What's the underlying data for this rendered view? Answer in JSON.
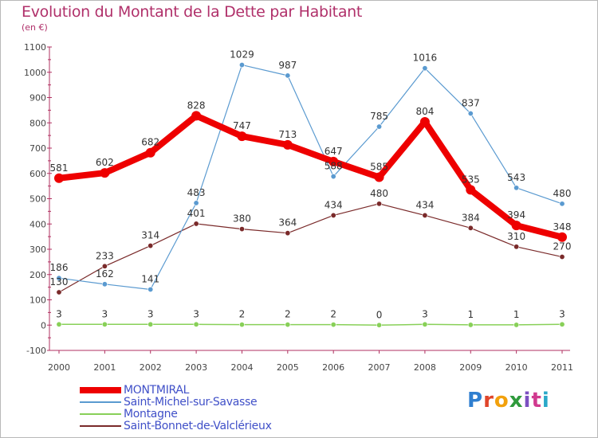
{
  "header": {
    "title": "Evolution du Montant de la Dette par Habitant",
    "subtitle": "(en €)"
  },
  "logo": {
    "text": "Proxiti",
    "colors": [
      "#2f7fd0",
      "#e0452a",
      "#f2a10c",
      "#2f9a3c",
      "#7c4fc0",
      "#d13a8f",
      "#2aa8c8"
    ]
  },
  "chart_data": {
    "type": "line",
    "title": "Evolution du Montant de la Dette par Habitant",
    "subtitle": "(en €)",
    "xlabel": "",
    "ylabel": "",
    "x": [
      "2000",
      "2001",
      "2002",
      "2003",
      "2004",
      "2005",
      "2006",
      "2007",
      "2008",
      "2009",
      "2010",
      "2011"
    ],
    "ylim": [
      -100,
      1100
    ],
    "yticks": [
      -100,
      0,
      100,
      200,
      300,
      400,
      500,
      600,
      700,
      800,
      900,
      1000,
      1100
    ],
    "grid": false,
    "legend_position": "bottom-left",
    "series": [
      {
        "name": "MONTMIRAL",
        "values": [
          581,
          602,
          682,
          828,
          747,
          713,
          647,
          585,
          804,
          535,
          394,
          348
        ],
        "color": "#ee0000"
      },
      {
        "name": "Saint-Michel-sur-Savasse",
        "values": [
          186,
          162,
          141,
          483,
          1029,
          987,
          588,
          785,
          1016,
          837,
          543,
          480
        ],
        "color": "#5a9ad0"
      },
      {
        "name": "Montagne",
        "values": [
          3,
          3,
          3,
          3,
          2,
          2,
          2,
          0,
          3,
          1,
          1,
          3
        ],
        "color": "#88d058"
      },
      {
        "name": "Saint-Bonnet-de-Valclérieux",
        "values": [
          130,
          233,
          314,
          401,
          380,
          364,
          434,
          480,
          434,
          384,
          310,
          270
        ],
        "color": "#7a2a2a"
      }
    ]
  }
}
